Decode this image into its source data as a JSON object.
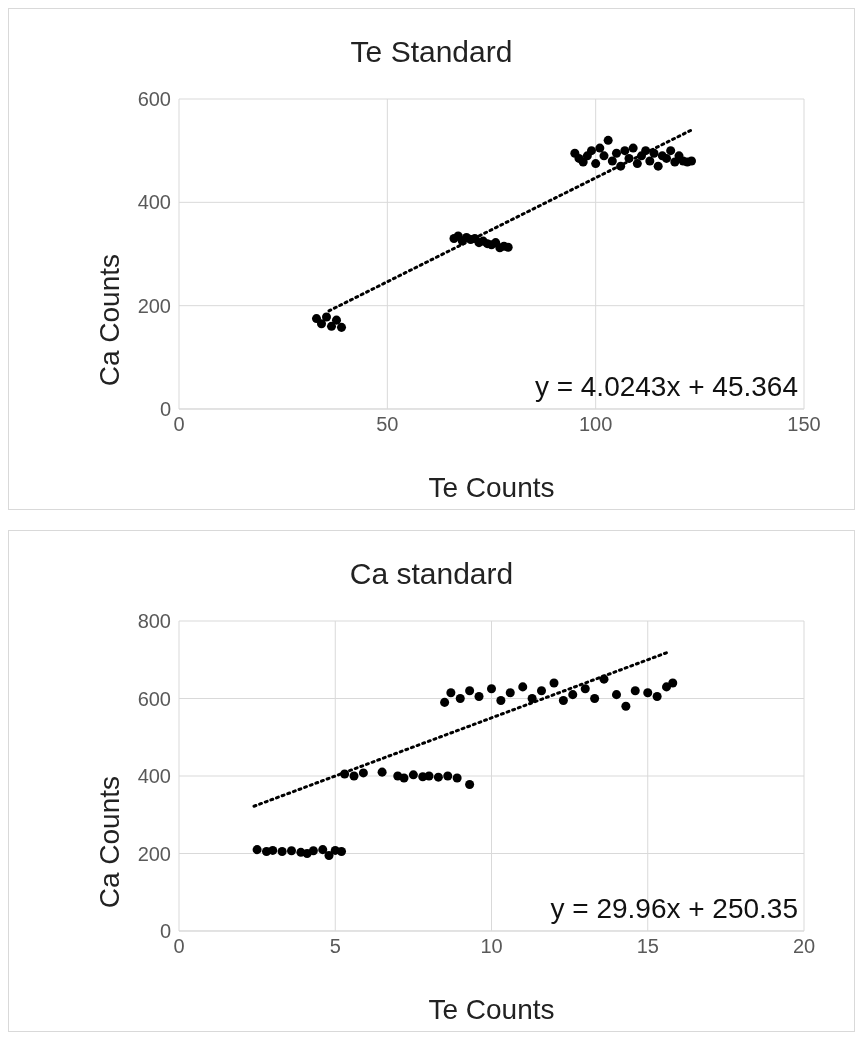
{
  "chart_data": [
    {
      "type": "scatter",
      "title": "Te Standard",
      "xlabel": "Te Counts",
      "ylabel": "Ca Counts",
      "annotations": [
        "y = 4.0243x + 45.364"
      ],
      "xlim": [
        0,
        150
      ],
      "xticks": [
        0,
        50,
        100,
        150
      ],
      "ylim": [
        0,
        600
      ],
      "yticks": [
        0,
        200,
        400,
        600
      ],
      "grid": true,
      "legend": false,
      "marker": "circle",
      "series": [
        {
          "color": "#000000",
          "x": [
            33,
            34.2,
            35.4,
            36.6,
            37.8,
            39,
            66,
            67,
            68,
            69,
            70,
            71,
            72,
            73,
            74,
            75,
            76,
            77,
            78,
            79,
            95,
            96,
            97,
            98,
            99,
            100,
            101,
            102,
            103,
            104,
            105,
            106,
            107,
            108,
            109,
            110,
            111,
            112,
            113,
            114,
            115,
            116,
            117,
            118,
            119,
            120,
            121,
            122,
            123
          ],
          "values": [
            175,
            165,
            178,
            160,
            172,
            158,
            330,
            335,
            325,
            332,
            328,
            330,
            322,
            325,
            320,
            318,
            322,
            312,
            315,
            313,
            495,
            485,
            478,
            490,
            500,
            475,
            505,
            490,
            520,
            480,
            495,
            470,
            500,
            485,
            505,
            475,
            490,
            500,
            480,
            495,
            470,
            490,
            485,
            500,
            478,
            490,
            480,
            478,
            480
          ]
        },
        {
          "type": "line",
          "color": "#000000",
          "line_style": "dotted",
          "marker": "none",
          "x": [
            36,
            123
          ],
          "values": [
            190,
            540
          ]
        }
      ]
    },
    {
      "type": "scatter",
      "title": "Ca standard",
      "xlabel": "Te Counts",
      "ylabel": "Ca Counts",
      "annotations": [
        "y = 29.96x + 250.35"
      ],
      "xlim": [
        0,
        20
      ],
      "xticks": [
        0,
        5,
        10,
        15,
        20
      ],
      "ylim": [
        0,
        800
      ],
      "yticks": [
        0,
        200,
        400,
        600,
        800
      ],
      "grid": true,
      "legend": false,
      "marker": "circle",
      "series": [
        {
          "color": "#000000",
          "x": [
            2.5,
            2.8,
            3,
            3.3,
            3.6,
            3.9,
            4.1,
            4.3,
            4.6,
            4.8,
            5,
            5.2,
            5.3,
            5.6,
            5.9,
            6.5,
            7,
            7.2,
            7.5,
            7.8,
            8,
            8.3,
            8.6,
            8.9,
            9.3,
            8.5,
            8.7,
            9,
            9.3,
            9.6,
            10,
            10.3,
            10.6,
            11,
            11.3,
            11.6,
            12,
            12.3,
            12.6,
            13,
            13.3,
            13.6,
            14,
            14.3,
            14.6,
            15,
            15.3,
            15.6,
            15.8
          ],
          "values": [
            210,
            205,
            208,
            205,
            207,
            203,
            200,
            207,
            210,
            195,
            208,
            205,
            405,
            400,
            408,
            410,
            400,
            395,
            403,
            398,
            400,
            397,
            400,
            395,
            378,
            590,
            615,
            600,
            620,
            605,
            625,
            595,
            615,
            630,
            600,
            620,
            640,
            595,
            610,
            625,
            600,
            650,
            610,
            580,
            620,
            615,
            605,
            630,
            640
          ]
        },
        {
          "type": "line",
          "color": "#000000",
          "line_style": "dotted",
          "marker": "none",
          "x": [
            2.4,
            15.7
          ],
          "values": [
            322,
            721
          ]
        }
      ]
    }
  ]
}
